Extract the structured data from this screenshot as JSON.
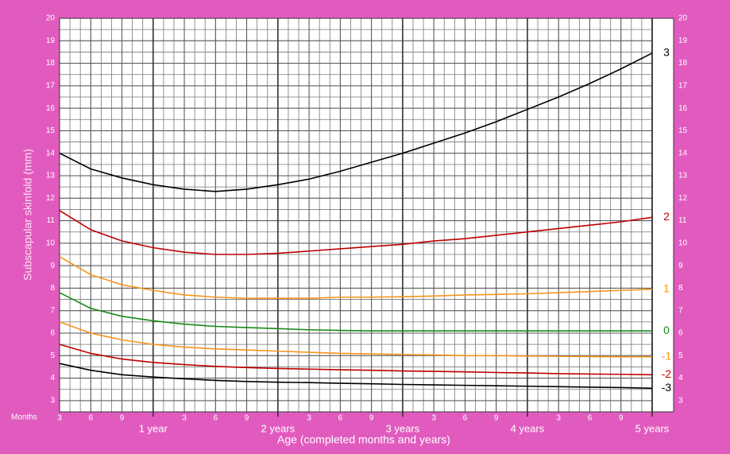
{
  "chart_data": {
    "type": "line",
    "y_label": "Subscapular skinfold (mm)",
    "x_label": "Age (completed months and years)",
    "x_unit_label": "Months",
    "x": [
      3,
      6,
      9,
      12,
      15,
      18,
      21,
      24,
      27,
      30,
      33,
      36,
      39,
      42,
      45,
      48,
      51,
      54,
      57,
      60
    ],
    "xlim": [
      3,
      60
    ],
    "xticks": [
      3,
      6,
      9,
      {
        "value": 12,
        "label": "1 year"
      },
      {
        "value": 15,
        "label": "3"
      },
      {
        "value": 18,
        "label": "6"
      },
      {
        "value": 21,
        "label": "9"
      },
      {
        "value": 24,
        "label": "2 years"
      },
      {
        "value": 27,
        "label": "3"
      },
      {
        "value": 30,
        "label": "6"
      },
      {
        "value": 33,
        "label": "9"
      },
      {
        "value": 36,
        "label": "3 years"
      },
      {
        "value": 39,
        "label": "3"
      },
      {
        "value": 42,
        "label": "6"
      },
      {
        "value": 45,
        "label": "9"
      },
      {
        "value": 48,
        "label": "4 years"
      },
      {
        "value": 51,
        "label": "3"
      },
      {
        "value": 54,
        "label": "6"
      },
      {
        "value": 57,
        "label": "9"
      },
      {
        "value": 60,
        "label": "5 years"
      }
    ],
    "ylim": [
      2.5,
      20
    ],
    "yticks": [
      3,
      4,
      5,
      6,
      7,
      8,
      9,
      10,
      11,
      12,
      13,
      14,
      15,
      16,
      17,
      18,
      19,
      20
    ],
    "grid": true,
    "series": [
      {
        "name": "3",
        "color": "#000000",
        "values": [
          14.0,
          13.3,
          12.9,
          12.6,
          12.4,
          12.3,
          12.4,
          12.6,
          12.85,
          13.2,
          13.6,
          14.0,
          14.45,
          14.9,
          15.4,
          15.95,
          16.5,
          17.1,
          17.75,
          18.45
        ]
      },
      {
        "name": "2",
        "color": "#c00000",
        "values": [
          11.45,
          10.6,
          10.1,
          9.8,
          9.6,
          9.5,
          9.5,
          9.55,
          9.65,
          9.75,
          9.85,
          9.95,
          10.1,
          10.2,
          10.35,
          10.5,
          10.65,
          10.8,
          10.95,
          11.15
        ]
      },
      {
        "name": "1",
        "color": "#f7941d",
        "values": [
          9.4,
          8.6,
          8.15,
          7.9,
          7.7,
          7.6,
          7.55,
          7.55,
          7.55,
          7.6,
          7.6,
          7.62,
          7.65,
          7.7,
          7.72,
          7.75,
          7.8,
          7.85,
          7.9,
          7.95
        ]
      },
      {
        "name": "0",
        "color": "#1a8a1a",
        "values": [
          7.8,
          7.1,
          6.75,
          6.55,
          6.4,
          6.3,
          6.25,
          6.2,
          6.15,
          6.12,
          6.1,
          6.1,
          6.1,
          6.1,
          6.1,
          6.1,
          6.1,
          6.1,
          6.1,
          6.1
        ]
      },
      {
        "name": "-1",
        "color": "#f7941d",
        "values": [
          6.5,
          6.0,
          5.7,
          5.5,
          5.38,
          5.3,
          5.25,
          5.2,
          5.15,
          5.1,
          5.08,
          5.05,
          5.03,
          5.0,
          5.0,
          4.98,
          4.97,
          4.96,
          4.95,
          4.95
        ]
      },
      {
        "name": "-2",
        "color": "#c00000",
        "values": [
          5.5,
          5.1,
          4.85,
          4.7,
          4.6,
          4.52,
          4.47,
          4.43,
          4.4,
          4.37,
          4.35,
          4.32,
          4.3,
          4.28,
          4.25,
          4.23,
          4.2,
          4.18,
          4.17,
          4.15
        ]
      },
      {
        "name": "-3",
        "color": "#000000",
        "values": [
          4.65,
          4.35,
          4.15,
          4.05,
          3.97,
          3.9,
          3.85,
          3.82,
          3.8,
          3.77,
          3.75,
          3.72,
          3.7,
          3.68,
          3.66,
          3.64,
          3.62,
          3.6,
          3.58,
          3.55
        ]
      }
    ]
  }
}
